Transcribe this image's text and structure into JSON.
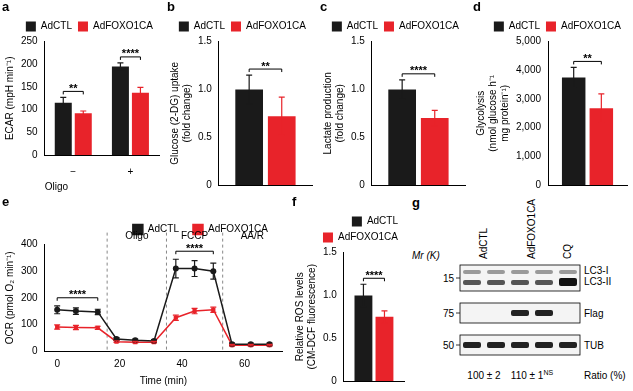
{
  "chart_data": [
    {
      "type": "bar",
      "title": "a",
      "y_label": "ECAR (mpH min⁻¹)",
      "x_label": "Oligo",
      "categories": [
        "−",
        "+"
      ],
      "series": [
        {
          "name": "AdCTL",
          "color": "#1a1a1a",
          "values": [
            115,
            195
          ],
          "errors": [
            12,
            8
          ]
        },
        {
          "name": "AdFOXO1CA",
          "color": "#e8232a",
          "values": [
            92,
            137
          ],
          "errors": [
            5,
            12
          ]
        }
      ],
      "significance": [
        "**",
        "****"
      ],
      "ylim": [
        0,
        250
      ],
      "yticks": [
        0,
        50,
        100,
        150,
        200,
        250
      ],
      "grid": false,
      "legend": "top"
    },
    {
      "type": "bar",
      "title": "b",
      "y_label": [
        "Glucose (2-DG) uptake",
        "(fold change)"
      ],
      "categories": [
        null
      ],
      "tick_labels": "y",
      "series": [
        {
          "name": "AdCTL",
          "color": "#1a1a1a",
          "values": [
            1.0
          ],
          "errors": [
            0.15
          ]
        },
        {
          "name": "AdFOXO1CA",
          "color": "#e8232a",
          "values": [
            0.72
          ],
          "errors": [
            0.2
          ]
        }
      ],
      "significance": [
        "**"
      ],
      "ylim": [
        0,
        1.5
      ],
      "yticks": [
        0,
        0.5,
        {
          "value": 1,
          "label": "1.0"
        },
        1.5
      ],
      "grid": false,
      "legend": "top"
    },
    {
      "type": "bar",
      "title": "c",
      "y_label": [
        "Lactate production",
        "(fold change)"
      ],
      "categories": [
        null
      ],
      "tick_labels": "y",
      "series": [
        {
          "name": "AdCTL",
          "color": "#1a1a1a",
          "values": [
            1.0
          ],
          "errors": [
            0.1
          ]
        },
        {
          "name": "AdFOXO1CA",
          "color": "#e8232a",
          "values": [
            0.7
          ],
          "errors": [
            0.08
          ]
        }
      ],
      "significance": [
        "****"
      ],
      "ylim": [
        0,
        1.5
      ],
      "yticks": [
        0,
        0.5,
        {
          "value": 1,
          "label": "1.0"
        },
        1.5
      ],
      "grid": false,
      "legend": "top"
    },
    {
      "type": "bar",
      "title": "d",
      "y_label": [
        "Glycolysis",
        "(nmol glucose h⁻¹",
        "mg protein⁻¹)"
      ],
      "categories": [
        null
      ],
      "tick_labels": "y",
      "series": [
        {
          "name": "AdCTL",
          "color": "#1a1a1a",
          "values": [
            3750
          ],
          "errors": [
            350
          ]
        },
        {
          "name": "AdFOXO1CA",
          "color": "#e8232a",
          "values": [
            2680
          ],
          "errors": [
            500
          ]
        }
      ],
      "significance": [
        "**"
      ],
      "ylim": [
        0,
        5000
      ],
      "yticks": [
        0,
        {
          "value": 1000,
          "label": "1,000"
        },
        {
          "value": 2000,
          "label": "2,000"
        },
        {
          "value": 3000,
          "label": "3,000"
        },
        {
          "value": 4000,
          "label": "4,000"
        },
        {
          "value": 5000,
          "label": "5,000"
        }
      ],
      "grid": false,
      "legend": "top"
    },
    {
      "type": "line",
      "title": "e",
      "x_label": "Time (min)",
      "y_label": "OCR (pmol O₂ min⁻¹)",
      "x": [
        0,
        6,
        13,
        19,
        25,
        31,
        38,
        44,
        50,
        56,
        62,
        68
      ],
      "series": [
        {
          "name": "AdCTL",
          "color": "#1a1a1a",
          "marker": "circle",
          "values": [
            155,
            150,
            147,
            45,
            40,
            38,
            310,
            310,
            300,
            25,
            25,
            25
          ],
          "errors": [
            15,
            12,
            10,
            5,
            5,
            5,
            35,
            30,
            30,
            5,
            5,
            5
          ]
        },
        {
          "name": "AdFOXO1CA",
          "color": "#e8232a",
          "marker": "square",
          "values": [
            90,
            88,
            87,
            35,
            33,
            33,
            125,
            150,
            155,
            22,
            22,
            22
          ],
          "errors": [
            8,
            8,
            6,
            3,
            3,
            3,
            10,
            10,
            10,
            3,
            3,
            3
          ]
        }
      ],
      "phases": [
        {
          "label": "Oligo",
          "x": 16
        },
        {
          "label": "FCCP",
          "x": 35
        },
        {
          "label": "AA/R",
          "x": 53
        }
      ],
      "annotations": [
        {
          "text": "****",
          "x": 6
        },
        {
          "text": "****",
          "x": 44
        }
      ],
      "xlim": [
        -4,
        72
      ],
      "xticks": [
        0,
        20,
        40,
        60
      ],
      "ylim": [
        0,
        400
      ],
      "yticks": [
        0,
        100,
        200,
        300,
        400
      ],
      "grid": false,
      "legend": "top"
    },
    {
      "type": "bar",
      "title": "f",
      "y_label": [
        "Relative ROS levels",
        "(CM-DCF fluorescence)"
      ],
      "categories": [
        null
      ],
      "tick_labels": "y",
      "series": [
        {
          "name": "AdCTL",
          "color": "#1a1a1a",
          "values": [
            1.0
          ],
          "errors": [
            0.13
          ]
        },
        {
          "name": "AdFOXO1CA",
          "color": "#e8232a",
          "values": [
            0.75
          ],
          "errors": [
            0.07
          ]
        }
      ],
      "significance": [
        "****"
      ],
      "ylim": [
        0,
        1.5
      ],
      "yticks": [
        0,
        0.5,
        {
          "value": 1,
          "label": "1.0"
        },
        1.5
      ],
      "grid": false,
      "legend": "top"
    }
  ],
  "blot": {
    "title": "g",
    "mr_label": "Mr (K)",
    "lanes": [
      {
        "label": "AdCTL",
        "count": 2
      },
      {
        "label": "AdFOXO1CA",
        "count": 2
      },
      {
        "label": "CQ",
        "count": 1
      }
    ],
    "rows": [
      {
        "marker": 15,
        "labels": [
          "LC3-I",
          "LC3-II"
        ]
      },
      {
        "marker": 75,
        "labels": [
          "Flag"
        ]
      },
      {
        "marker": 50,
        "labels": [
          "TUB"
        ]
      }
    ],
    "ratio": {
      "label": "Ratio (%)",
      "values": [
        "100 ± 2",
        "110 ± 1"
      ],
      "notes": [
        null,
        "NS"
      ]
    }
  }
}
